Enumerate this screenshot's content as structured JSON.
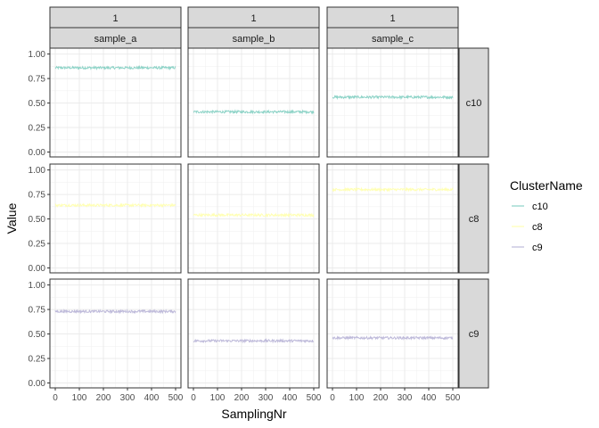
{
  "chart_data": {
    "type": "line",
    "xlabel": "SamplingNr",
    "ylabel": "Value",
    "xlim": [
      0,
      500
    ],
    "ylim": [
      0,
      1
    ],
    "x_ticks": [
      0,
      100,
      200,
      300,
      400,
      500
    ],
    "y_ticks": [
      0.0,
      0.25,
      0.5,
      0.75,
      1.0
    ],
    "y_tick_labels": [
      "0.00",
      "0.25",
      "0.50",
      "0.75",
      "1.00"
    ],
    "grid": true,
    "columns": [
      {
        "top_strip": "1",
        "label": "sample_a"
      },
      {
        "top_strip": "1",
        "label": "sample_b"
      },
      {
        "top_strip": "1",
        "label": "sample_c"
      }
    ],
    "rows": [
      "c10",
      "c8",
      "c9"
    ],
    "series_colors": {
      "c10": "#8dd3c7",
      "c8": "#ffffb3",
      "c9": "#bebada"
    },
    "series_levels": {
      "c10": {
        "sample_a": 0.86,
        "sample_b": 0.41,
        "sample_c": 0.56
      },
      "c8": {
        "sample_a": 0.64,
        "sample_b": 0.54,
        "sample_c": 0.8
      },
      "c9": {
        "sample_a": 0.73,
        "sample_b": 0.43,
        "sample_c": 0.46
      }
    },
    "legend": {
      "title": "ClusterName",
      "position": "right",
      "entries": [
        "c10",
        "c8",
        "c9"
      ]
    }
  }
}
